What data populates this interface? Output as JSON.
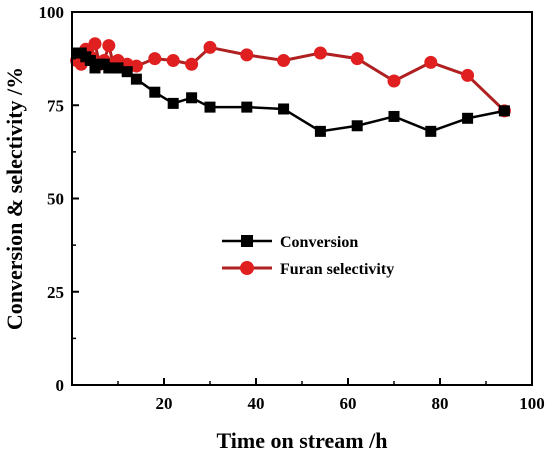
{
  "chart_data": {
    "type": "line",
    "title": "",
    "xlabel": "Time on stream /h",
    "ylabel": "Conversion & selectivity /%",
    "xlim": [
      0,
      100
    ],
    "ylim": [
      0,
      100
    ],
    "xticks": [
      20,
      40,
      60,
      80,
      100
    ],
    "yticks": [
      0,
      25,
      50,
      75,
      100
    ],
    "grid": false,
    "legend_position": "center-right",
    "series": [
      {
        "name": "Conversion",
        "color": "#000000",
        "marker": "square",
        "x": [
          1,
          2,
          3,
          4,
          5,
          6,
          7,
          8,
          9,
          10,
          12,
          14,
          18,
          22,
          26,
          30,
          38,
          46,
          54,
          62,
          70,
          78,
          86,
          94
        ],
        "y": [
          89,
          89,
          88,
          87,
          85,
          86,
          86,
          85,
          85,
          85,
          84,
          82,
          78.5,
          75.5,
          77,
          74.5,
          74.5,
          74,
          68,
          69.5,
          72,
          68,
          71.5,
          73.5
        ]
      },
      {
        "name": "Furan selectivity",
        "color": "#e02020",
        "line_color": "#b02020",
        "marker": "circle",
        "x": [
          1,
          2,
          3,
          4,
          5,
          6,
          7,
          8,
          9,
          10,
          12,
          14,
          18,
          22,
          26,
          30,
          38,
          46,
          54,
          62,
          70,
          78,
          86,
          94
        ],
        "y": [
          87,
          86,
          90,
          88,
          91.5,
          86,
          87,
          91,
          86,
          87,
          86,
          85.5,
          87.5,
          87,
          86,
          90.5,
          88.5,
          87,
          89,
          87.5,
          81.5,
          86.5,
          83,
          73.5
        ]
      }
    ]
  }
}
